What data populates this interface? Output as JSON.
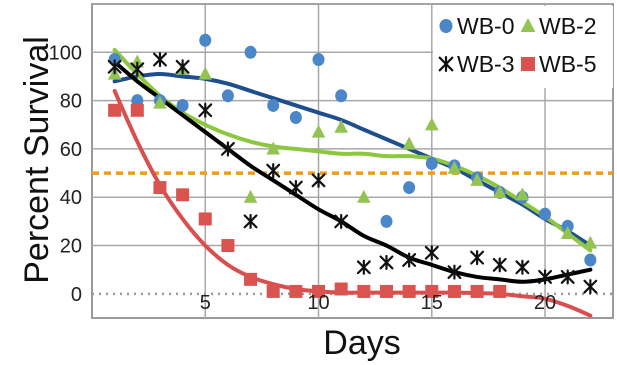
{
  "chart_data": {
    "type": "scatter",
    "title": "",
    "xlabel": "Days",
    "ylabel": "Percent Survival",
    "xlim": [
      0,
      23
    ],
    "ylim": [
      -10,
      120
    ],
    "x_ticks": [
      5,
      10,
      15,
      20
    ],
    "y_ticks": [
      0,
      20,
      40,
      60,
      80,
      100
    ],
    "grid": true,
    "legend_position": "top-right",
    "reference_lines": [
      {
        "y": 50,
        "color": "#F39C12",
        "style": "dashed"
      },
      {
        "y": 0,
        "color": "#999999",
        "style": "dotted"
      }
    ],
    "series": [
      {
        "name": "WB-0",
        "marker": "circle",
        "color": "#4A86C8",
        "trend_color": "#1F4E8C",
        "x": [
          1,
          2,
          3,
          4,
          5,
          6,
          7,
          8,
          9,
          10,
          11,
          13,
          14,
          15,
          16,
          17,
          18,
          19,
          20,
          21,
          22
        ],
        "y": [
          97,
          80,
          80,
          78,
          105,
          82,
          100,
          78,
          73,
          97,
          82,
          30,
          44,
          54,
          53,
          48,
          42,
          40,
          33,
          28,
          14
        ],
        "trend_x": [
          1,
          2,
          3,
          4,
          5,
          6,
          7,
          8,
          9,
          10,
          11,
          12,
          13,
          14,
          15,
          16,
          17,
          18,
          19,
          20,
          21,
          22
        ],
        "trend_y": [
          88,
          90,
          91,
          90,
          89,
          87,
          84,
          81,
          78,
          75,
          72,
          68,
          64,
          60,
          56,
          52,
          47,
          42,
          37,
          31,
          26,
          20
        ]
      },
      {
        "name": "WB-2",
        "marker": "triangle",
        "color": "#92C353",
        "trend_color": "#8DC63F",
        "x": [
          1,
          2,
          3,
          4,
          5,
          7,
          8,
          10,
          11,
          12,
          14,
          15,
          16,
          17,
          18,
          19,
          21,
          22
        ],
        "y": [
          91,
          96,
          79,
          93,
          91,
          40,
          60,
          67,
          69,
          40,
          62,
          70,
          52,
          47,
          42,
          41,
          25,
          21
        ],
        "trend_x": [
          1,
          2,
          3,
          4,
          5,
          6,
          7,
          8,
          9,
          10,
          11,
          12,
          13,
          14,
          15,
          16,
          17,
          18,
          19,
          20,
          21,
          22
        ],
        "trend_y": [
          101,
          91,
          82,
          75,
          70,
          66,
          63,
          61,
          60,
          59,
          58,
          58,
          57,
          57,
          56,
          53,
          49,
          44,
          38,
          32,
          25,
          18
        ]
      },
      {
        "name": "WB-3",
        "marker": "asterisk",
        "color": "#111111",
        "trend_color": "#000000",
        "x": [
          1,
          2,
          3,
          4,
          5,
          6,
          7,
          8,
          9,
          10,
          11,
          12,
          13,
          14,
          15,
          16,
          17,
          18,
          19,
          20,
          21,
          22
        ],
        "y": [
          94,
          93,
          97,
          94,
          76,
          60,
          30,
          51,
          44,
          47,
          30,
          11,
          13,
          14,
          17,
          9,
          15,
          12,
          11,
          7,
          7,
          3
        ],
        "trend_x": [
          1,
          2,
          3,
          4,
          5,
          6,
          7,
          8,
          9,
          10,
          11,
          12,
          13,
          14,
          15,
          16,
          17,
          18,
          19,
          20,
          21,
          22
        ],
        "trend_y": [
          96,
          88,
          81,
          74,
          67,
          60,
          53,
          47,
          41,
          35,
          30,
          24,
          20,
          15,
          12,
          9,
          7,
          6,
          5,
          6,
          8,
          10
        ]
      },
      {
        "name": "WB-5",
        "marker": "square",
        "color": "#D9534F",
        "trend_color": "#D94F4F",
        "x": [
          1,
          2,
          3,
          4,
          5,
          6,
          7,
          8,
          9,
          10,
          11,
          12,
          13,
          14,
          15,
          16,
          17,
          18
        ],
        "y": [
          76,
          76,
          44,
          41,
          31,
          20,
          6,
          1,
          1,
          1,
          2,
          1,
          1,
          1,
          1,
          1,
          1,
          1
        ],
        "trend_x": [
          1,
          2,
          3,
          4,
          5,
          6,
          7,
          8,
          9,
          10,
          11,
          12,
          13,
          14,
          15,
          16,
          17,
          18,
          19,
          20,
          21,
          22
        ],
        "trend_y": [
          84,
          63,
          45,
          31,
          20,
          12,
          7,
          4,
          2,
          1,
          0.5,
          0.5,
          0.5,
          0.5,
          0.5,
          0.5,
          0.3,
          0,
          -1,
          -2,
          -5,
          -9
        ]
      }
    ]
  }
}
